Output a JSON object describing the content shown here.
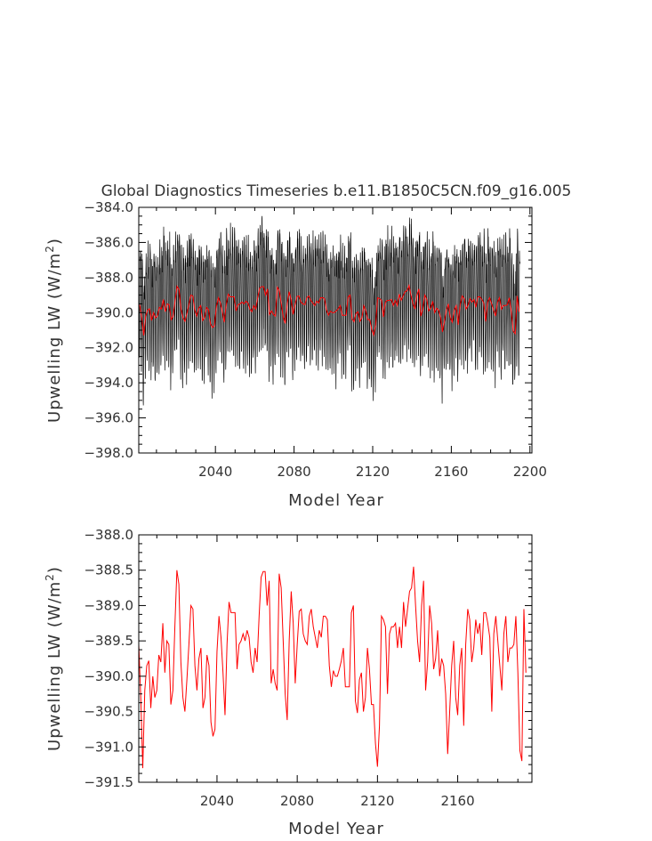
{
  "chart_data": [
    {
      "type": "line",
      "title": "Global Diagnostics Timeseries b.e11.B1850C5CN.f09_g16.005",
      "xlabel": "Model Year",
      "ylabel": "Upwelling LW (W/m²)",
      "ylabel_main": "Upwelling LW (W/m",
      "ylabel_sup": "2",
      "ylabel_close": ")",
      "xlim": [
        2001,
        2201
      ],
      "ylim": [
        -398.0,
        -384.0
      ],
      "x_ticks": [
        2040,
        2080,
        2120,
        2160,
        2200
      ],
      "y_ticks": [
        -384.0,
        -386.0,
        -388.0,
        -390.0,
        -392.0,
        -394.0,
        -396.0,
        -398.0
      ],
      "series": [
        {
          "color": "#000000",
          "kind": "monthly",
          "annual_cycle_amplitude": 3.3,
          "annual_cycle_shape": [
            0.75,
            0.2,
            -0.45,
            -0.95,
            -1.0,
            -0.6,
            0.05,
            0.7,
            1.0,
            0.95,
            0.85,
            0.8
          ]
        },
        {
          "color": "#ff0000",
          "kind": "annual-mean"
        }
      ]
    },
    {
      "type": "line",
      "title": "",
      "xlabel": "Model Year",
      "ylabel": "Upwelling LW (W/m²)",
      "ylabel_main": "Upwelling LW (W/m",
      "ylabel_sup": "2",
      "ylabel_close": ")",
      "xlim": [
        2001,
        2197
      ],
      "ylim": [
        -391.5,
        -388.0
      ],
      "x_ticks": [
        2040,
        2080,
        2120,
        2160
      ],
      "y_ticks": [
        -388.0,
        -388.5,
        -389.0,
        -389.5,
        -390.0,
        -390.5,
        -391.0,
        -391.5
      ],
      "series": [
        {
          "color": "#ff0000",
          "x_start": 2001,
          "x_step": 1,
          "values": [
            -389.55,
            -390.3,
            -391.3,
            -390.2,
            -389.85,
            -389.78,
            -390.45,
            -390.0,
            -390.3,
            -390.2,
            -389.7,
            -389.8,
            -389.25,
            -389.95,
            -389.5,
            -389.55,
            -390.4,
            -390.2,
            -389.3,
            -388.5,
            -388.7,
            -389.8,
            -390.3,
            -390.5,
            -390.05,
            -389.55,
            -389.0,
            -389.05,
            -389.85,
            -390.2,
            -389.75,
            -389.6,
            -390.45,
            -390.3,
            -389.7,
            -389.85,
            -390.65,
            -390.85,
            -390.75,
            -389.65,
            -389.15,
            -389.45,
            -389.95,
            -390.55,
            -389.55,
            -388.95,
            -389.1,
            -389.1,
            -389.1,
            -389.9,
            -389.55,
            -389.5,
            -389.4,
            -389.5,
            -389.35,
            -389.45,
            -389.8,
            -389.95,
            -389.6,
            -389.8,
            -389.15,
            -388.6,
            -388.52,
            -388.52,
            -389.0,
            -388.65,
            -390.1,
            -389.9,
            -390.1,
            -390.2,
            -388.55,
            -388.75,
            -389.5,
            -390.25,
            -390.62,
            -389.5,
            -388.8,
            -389.25,
            -390.1,
            -389.55,
            -389.08,
            -389.05,
            -389.4,
            -389.5,
            -389.55,
            -389.15,
            -389.05,
            -389.3,
            -389.45,
            -389.6,
            -389.35,
            -389.45,
            -389.15,
            -389.15,
            -389.2,
            -389.85,
            -390.15,
            -389.92,
            -390.0,
            -390.0,
            -389.9,
            -389.78,
            -389.6,
            -390.15,
            -390.15,
            -390.15,
            -389.1,
            -389.0,
            -390.35,
            -390.52,
            -390.05,
            -389.95,
            -390.5,
            -390.3,
            -389.6,
            -389.9,
            -390.4,
            -390.4,
            -390.95,
            -391.28,
            -390.7,
            -389.15,
            -389.2,
            -389.3,
            -390.25,
            -389.4,
            -389.3,
            -389.3,
            -389.25,
            -389.6,
            -389.3,
            -389.6,
            -388.95,
            -389.3,
            -389.05,
            -388.8,
            -388.75,
            -388.45,
            -389.0,
            -389.5,
            -389.8,
            -389.0,
            -388.65,
            -390.2,
            -389.8,
            -389.0,
            -389.25,
            -389.9,
            -389.75,
            -389.35,
            -390.0,
            -389.75,
            -389.85,
            -390.25,
            -391.1,
            -390.5,
            -389.85,
            -389.5,
            -390.3,
            -390.55,
            -389.85,
            -389.6,
            -390.7,
            -389.55,
            -389.05,
            -389.2,
            -389.8,
            -389.6,
            -389.2,
            -389.4,
            -389.25,
            -389.7,
            -389.1,
            -389.1,
            -389.25,
            -389.45,
            -390.5,
            -389.4,
            -389.15,
            -389.5,
            -389.85,
            -390.2,
            -389.4,
            -389.15,
            -389.8,
            -389.6,
            -389.6,
            -389.55,
            -389.15,
            -389.95,
            -391.05,
            -391.2,
            -389.05,
            -389.95
          ]
        }
      ]
    }
  ]
}
